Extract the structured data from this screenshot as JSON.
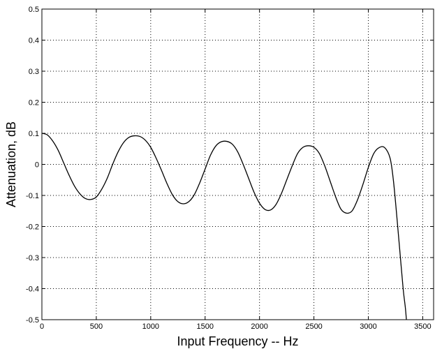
{
  "chart_data": {
    "type": "line",
    "title": "",
    "xlabel": "Input Frequency -- Hz",
    "ylabel": "Attenuation, dB",
    "xlim": [
      0,
      3600
    ],
    "ylim": [
      -0.5,
      0.5
    ],
    "grid": true,
    "x_ticks": [
      0,
      500,
      1000,
      1500,
      2000,
      2500,
      3000,
      3500
    ],
    "y_ticks": [
      -0.5,
      -0.4,
      -0.3,
      -0.2,
      -0.1,
      0,
      0.1,
      0.2,
      0.3,
      0.4,
      0.5
    ],
    "x_tick_labels": [
      "0",
      "500",
      "1000",
      "1500",
      "2000",
      "2500",
      "3000",
      "3500"
    ],
    "y_tick_labels": [
      "-0.5",
      "-0.4",
      "-0.3",
      "-0.2",
      "-0.1",
      "0",
      "0.1",
      "0.2",
      "0.3",
      "0.4",
      "0.5"
    ],
    "line_color": "#000000",
    "series": [
      {
        "x": [
          0,
          50,
          100,
          150,
          200,
          250,
          300,
          350,
          400,
          450,
          500,
          550,
          600,
          650,
          700,
          750,
          800,
          850,
          900,
          950,
          1000,
          1050,
          1100,
          1150,
          1200,
          1250,
          1300,
          1350,
          1400,
          1450,
          1500,
          1550,
          1600,
          1650,
          1700,
          1750,
          1800,
          1850,
          1900,
          1950,
          2000,
          2050,
          2100,
          2150,
          2200,
          2250,
          2300,
          2350,
          2400,
          2450,
          2500,
          2550,
          2600,
          2650,
          2700,
          2750,
          2800,
          2850,
          2900,
          2950,
          3000,
          3050,
          3100,
          3150,
          3200,
          3230,
          3260,
          3290,
          3320,
          3340,
          3350
        ],
        "y": [
          0.1,
          0.095,
          0.075,
          0.045,
          0.005,
          -0.035,
          -0.07,
          -0.095,
          -0.11,
          -0.113,
          -0.105,
          -0.08,
          -0.045,
          0.0,
          0.04,
          0.07,
          0.087,
          0.092,
          0.09,
          0.078,
          0.055,
          0.02,
          -0.02,
          -0.062,
          -0.098,
          -0.12,
          -0.127,
          -0.12,
          -0.098,
          -0.06,
          -0.015,
          0.03,
          0.06,
          0.073,
          0.074,
          0.065,
          0.04,
          0.0,
          -0.045,
          -0.09,
          -0.125,
          -0.145,
          -0.147,
          -0.13,
          -0.095,
          -0.05,
          -0.005,
          0.035,
          0.055,
          0.06,
          0.055,
          0.035,
          -0.005,
          -0.055,
          -0.105,
          -0.145,
          -0.157,
          -0.15,
          -0.115,
          -0.065,
          -0.01,
          0.035,
          0.054,
          0.054,
          0.02,
          -0.05,
          -0.16,
          -0.28,
          -0.4,
          -0.46,
          -0.5
        ]
      }
    ]
  }
}
